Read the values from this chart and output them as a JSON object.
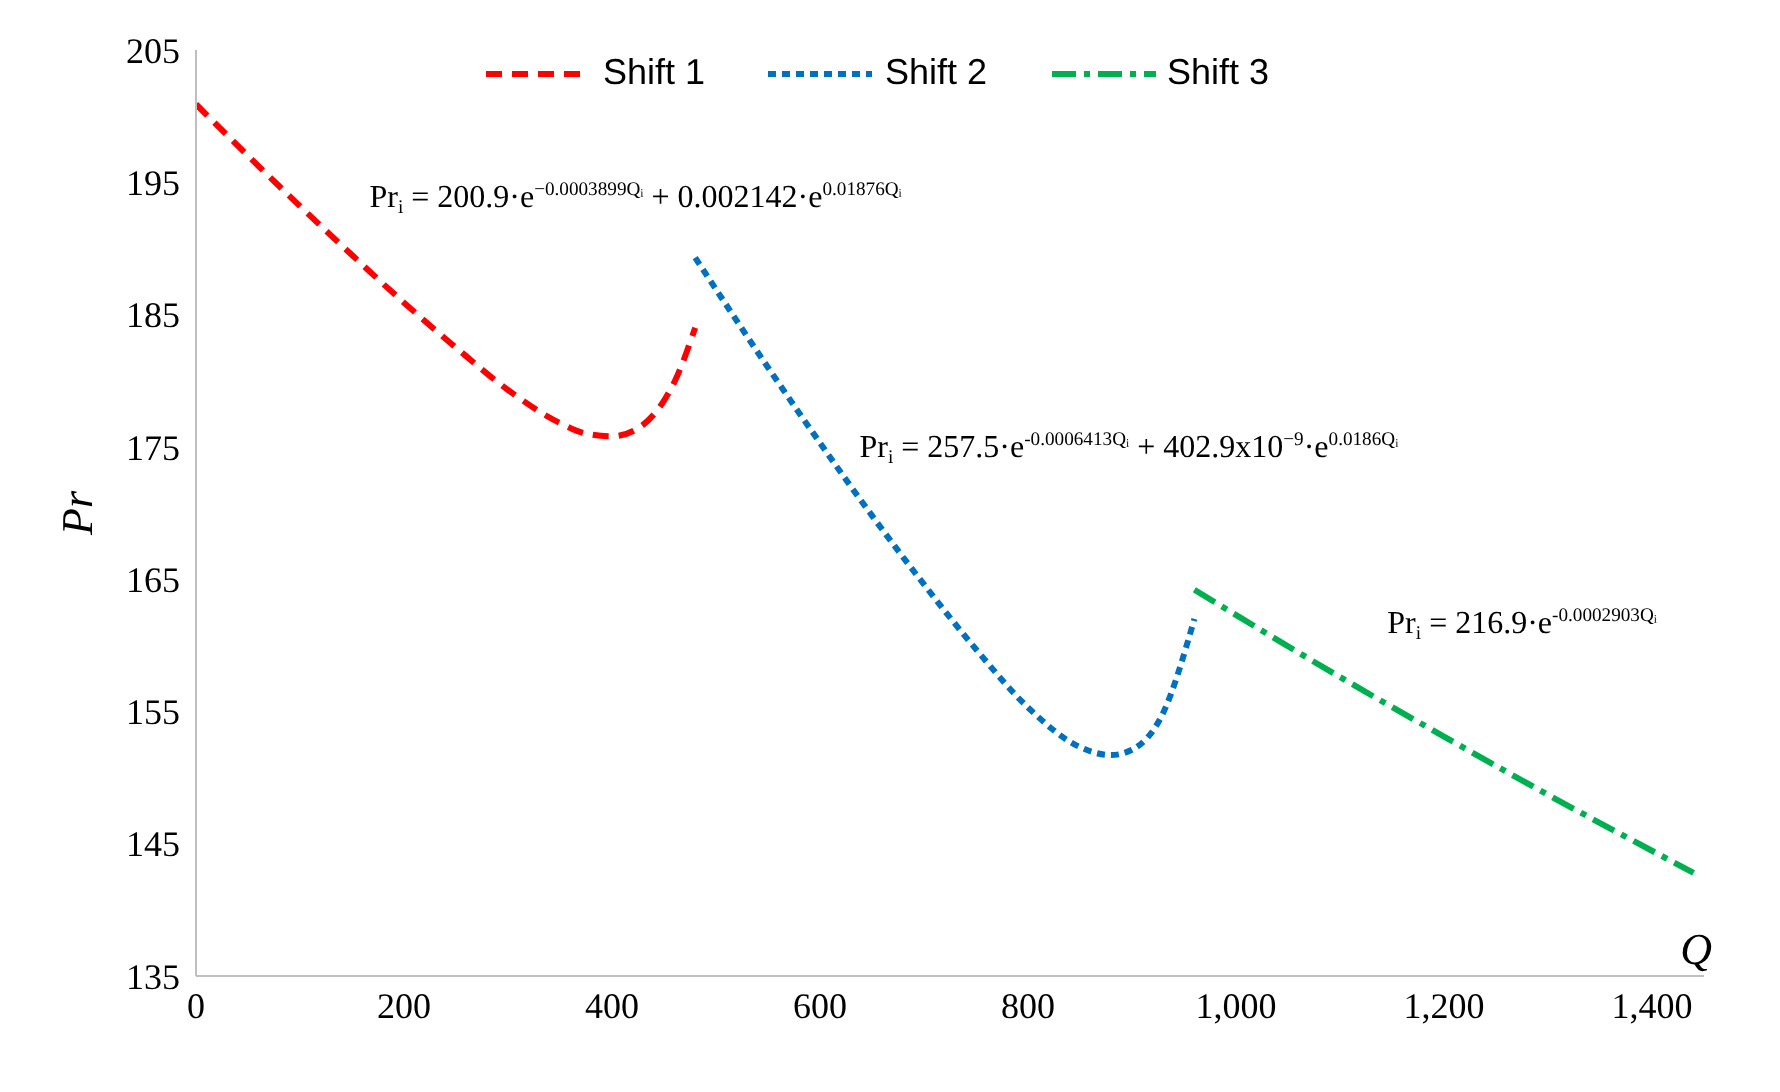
{
  "chart_data": {
    "type": "line",
    "xlabel": "Q",
    "ylabel": "Pr",
    "xlim": [
      0,
      1450
    ],
    "ylim": [
      135,
      205
    ],
    "xticks": [
      0,
      200,
      400,
      600,
      800,
      {
        "value": 1000,
        "label": "1,000"
      },
      {
        "value": 1200,
        "label": "1,200"
      },
      {
        "value": 1400,
        "label": "1,400"
      }
    ],
    "yticks": [
      135,
      145,
      155,
      165,
      175,
      185,
      195,
      205
    ],
    "grid": false,
    "legend": "top",
    "marker": "none",
    "series": [
      {
        "name": "Shift 1",
        "color": "#ff0000",
        "line_style": "dashed",
        "x": [
          0,
          50,
          100,
          150,
          200,
          250,
          300,
          350,
          375,
          400,
          425,
          450,
          460,
          480
        ],
        "values": [
          200.9,
          197.0,
          193.2,
          189.5,
          185.9,
          182.5,
          179.3,
          176.8,
          176.0,
          175.8,
          176.4,
          178.5,
          179.9,
          184.0
        ]
      },
      {
        "name": "Shift 2",
        "color": "#0070c0",
        "line_style": "dotted",
        "x": [
          480,
          550,
          600,
          650,
          700,
          750,
          800,
          850,
          880,
          900,
          930,
          960
        ],
        "values": [
          189.3,
          181.0,
          175.3,
          169.8,
          164.6,
          159.7,
          155.3,
          152.3,
          151.7,
          152.1,
          154.9,
          162.0
        ]
      },
      {
        "name": "Shift 3",
        "color": "#00b050",
        "line_style": "dashdot",
        "x": [
          960,
          1100,
          1200,
          1300,
          1440
        ],
        "values": [
          164.2,
          157.6,
          153.1,
          148.7,
          142.8
        ]
      }
    ],
    "annotations": [
      "Pr$_{i}$ = 200.9·e$^{−0.0003899Qᵢ}$ + 0.002142·e$^{0.01876Qᵢ}$",
      "Pr$_{i}$ = 257.5·e$^{-0.0006413Qᵢ}$ + 402.9x10$^{−9}$·e$^{0.0186Qᵢ}$",
      "Pr$_{i}$ = 216.9·e$^{-0.0002903Qᵢ}$"
    ]
  }
}
